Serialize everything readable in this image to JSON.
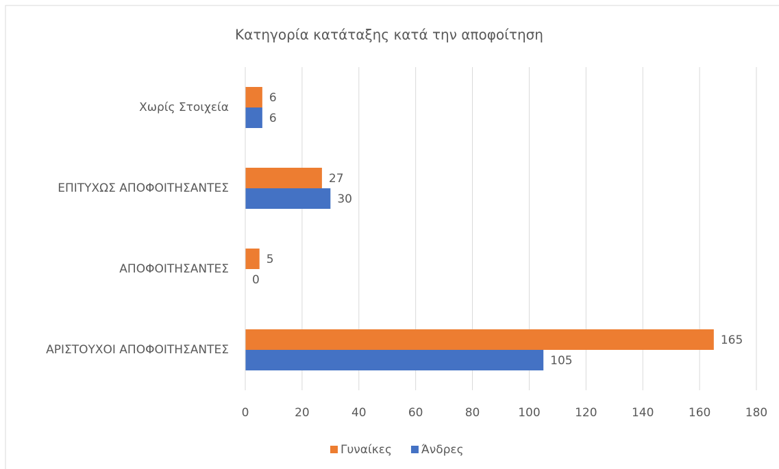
{
  "chart_data": {
    "type": "hbar",
    "title": "Κατηγορία κατάταξης κατά την αποφοίτηση",
    "categories": [
      "ΑΡΙΣΤΟΥΧΟΙ ΑΠΟΦΟΙΤΗΣΑΝΤΕΣ",
      "ΑΠΟΦΟΙΤΗΣΑΝΤΕΣ",
      "ΕΠΙΤΥΧΩΣ ΑΠΟΦΟΙΤΗΣΑΝΤΕΣ",
      "Χωρίς Στοιχεία"
    ],
    "series": [
      {
        "name": "Άνδρες",
        "color": "#4472c4",
        "values": [
          105,
          0,
          30,
          6
        ]
      },
      {
        "name": "Γυναίκες",
        "color": "#ed7d31",
        "values": [
          165,
          5,
          27,
          6
        ]
      }
    ],
    "xlim": [
      0,
      180
    ],
    "xticks": [
      0,
      20,
      40,
      60,
      80,
      100,
      120,
      140,
      160,
      180
    ],
    "grid": true,
    "legend": "bottom"
  }
}
